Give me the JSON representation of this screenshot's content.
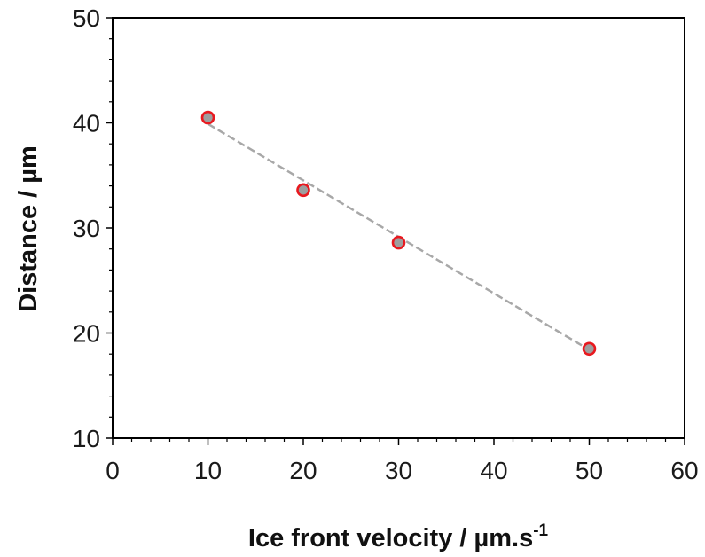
{
  "chart_data": {
    "type": "scatter",
    "title": "",
    "xlabel": "Ice front velocity / µm.s",
    "xlabel_superscript": "-1",
    "ylabel": "Distance / µm",
    "xlim": [
      0,
      60
    ],
    "ylim": [
      10,
      50
    ],
    "x_ticks": [
      "0",
      "10",
      "20",
      "30",
      "40",
      "50",
      "60"
    ],
    "y_ticks": [
      "10",
      "20",
      "30",
      "40",
      "50"
    ],
    "grid": false,
    "series": [
      {
        "x": [
          10,
          20,
          30,
          50
        ],
        "y": [
          40.5,
          33.6,
          28.6,
          18.5
        ],
        "marker_fill": "#9e9e9e",
        "marker_edge": "#e8191f"
      }
    ],
    "fit_line": {
      "x": [
        10,
        50
      ],
      "y": [
        39.9,
        18.4
      ],
      "color": "#a8a8a8",
      "style": "dashed"
    }
  }
}
